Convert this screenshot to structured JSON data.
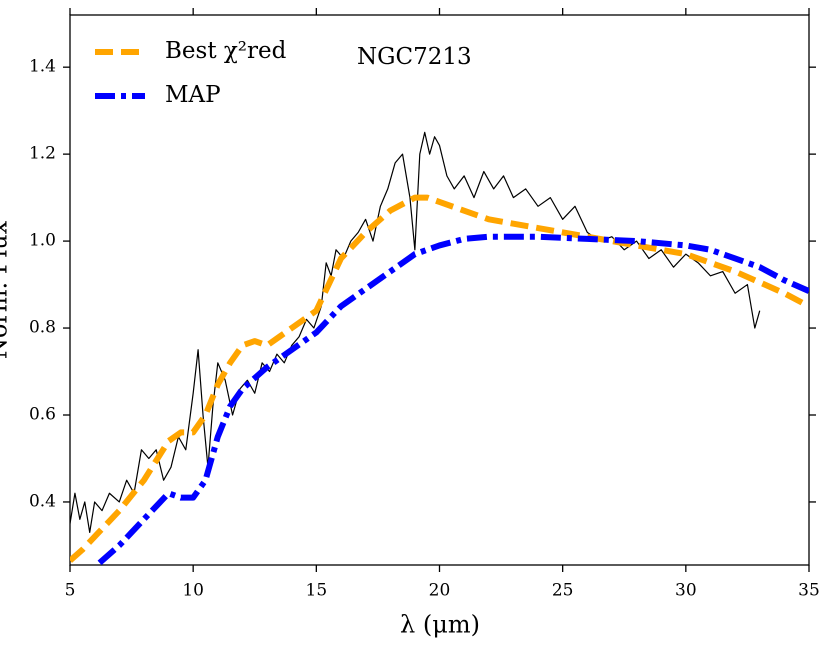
{
  "chart_data": {
    "type": "line",
    "xlabel": "λ (μm)",
    "ylabel": "Norm. Flux",
    "annotation": "NGC7213",
    "xlim": [
      5,
      35
    ],
    "ylim": [
      0.255,
      1.52
    ],
    "xticks": [
      5,
      10,
      15,
      20,
      25,
      30,
      35
    ],
    "yticks": [
      0.4,
      0.6,
      0.8,
      {
        "value": 1,
        "label": "1.0"
      },
      1.2,
      1.4
    ],
    "legend": "upper left",
    "series": [
      {
        "color": "#000000",
        "style": "solid",
        "x": [
          5.0,
          5.2,
          5.4,
          5.6,
          5.8,
          6.0,
          6.3,
          6.6,
          7.0,
          7.3,
          7.6,
          7.9,
          8.2,
          8.5,
          8.8,
          9.1,
          9.4,
          9.7,
          10.0,
          10.2,
          10.4,
          10.6,
          10.8,
          11.0,
          11.3,
          11.6,
          11.9,
          12.2,
          12.5,
          12.8,
          13.1,
          13.4,
          13.7,
          14.0,
          14.3,
          14.6,
          14.9,
          15.2,
          15.4,
          15.6,
          15.8,
          16.1,
          16.4,
          16.7,
          17.0,
          17.3,
          17.6,
          17.9,
          18.2,
          18.5,
          18.8,
          19.0,
          19.2,
          19.4,
          19.6,
          19.8,
          20.0,
          20.3,
          20.6,
          21.0,
          21.4,
          21.8,
          22.2,
          22.6,
          23.0,
          23.5,
          24.0,
          24.5,
          25.0,
          25.5,
          26.0,
          26.5,
          27.0,
          27.5,
          28.0,
          28.5,
          29.0,
          29.5,
          30.0,
          30.5,
          31.0,
          31.5,
          32.0,
          32.5,
          32.8,
          33.0
        ],
        "values": [
          0.35,
          0.42,
          0.36,
          0.4,
          0.33,
          0.4,
          0.38,
          0.42,
          0.4,
          0.45,
          0.42,
          0.52,
          0.5,
          0.52,
          0.45,
          0.48,
          0.55,
          0.52,
          0.65,
          0.75,
          0.6,
          0.48,
          0.62,
          0.72,
          0.68,
          0.6,
          0.66,
          0.68,
          0.65,
          0.72,
          0.7,
          0.74,
          0.72,
          0.76,
          0.78,
          0.82,
          0.8,
          0.85,
          0.95,
          0.92,
          0.98,
          0.96,
          1.0,
          1.02,
          1.05,
          1.0,
          1.08,
          1.12,
          1.18,
          1.2,
          1.1,
          0.98,
          1.2,
          1.25,
          1.2,
          1.24,
          1.22,
          1.15,
          1.12,
          1.15,
          1.1,
          1.16,
          1.12,
          1.15,
          1.1,
          1.12,
          1.08,
          1.1,
          1.05,
          1.08,
          1.02,
          1.0,
          1.01,
          0.98,
          1.0,
          0.96,
          0.98,
          0.94,
          0.97,
          0.95,
          0.92,
          0.93,
          0.88,
          0.9,
          0.8,
          0.84
        ]
      },
      {
        "name": "Best χ²red",
        "color": "#ffa500",
        "style": "dashed",
        "x": [
          5,
          5.5,
          6,
          7,
          8,
          9,
          9.5,
          10,
          10.5,
          11,
          11.5,
          12,
          12.5,
          13,
          13.5,
          14,
          15,
          15.5,
          16,
          17,
          18,
          19,
          19.5,
          20,
          21,
          22,
          24,
          26,
          28,
          30,
          32,
          34,
          35
        ],
        "values": [
          0.265,
          0.29,
          0.32,
          0.38,
          0.45,
          0.54,
          0.56,
          0.56,
          0.6,
          0.67,
          0.72,
          0.76,
          0.77,
          0.76,
          0.78,
          0.8,
          0.84,
          0.9,
          0.96,
          1.02,
          1.07,
          1.1,
          1.1,
          1.09,
          1.07,
          1.05,
          1.03,
          1.01,
          0.99,
          0.97,
          0.93,
          0.88,
          0.85
        ]
      },
      {
        "name": "MAP",
        "color": "#0000ff",
        "style": "dashdot",
        "x": [
          6.2,
          7,
          8,
          9,
          9.5,
          10,
          10.5,
          11,
          11.5,
          12,
          13,
          14,
          15,
          16,
          17,
          18,
          19,
          20,
          21,
          22,
          24,
          26,
          28,
          30,
          31,
          32,
          33,
          34,
          35
        ],
        "values": [
          0.26,
          0.3,
          0.36,
          0.42,
          0.41,
          0.41,
          0.45,
          0.55,
          0.62,
          0.66,
          0.71,
          0.75,
          0.79,
          0.85,
          0.89,
          0.93,
          0.97,
          0.99,
          1.005,
          1.01,
          1.01,
          1.005,
          1.0,
          0.99,
          0.98,
          0.96,
          0.94,
          0.91,
          0.885
        ]
      }
    ]
  }
}
